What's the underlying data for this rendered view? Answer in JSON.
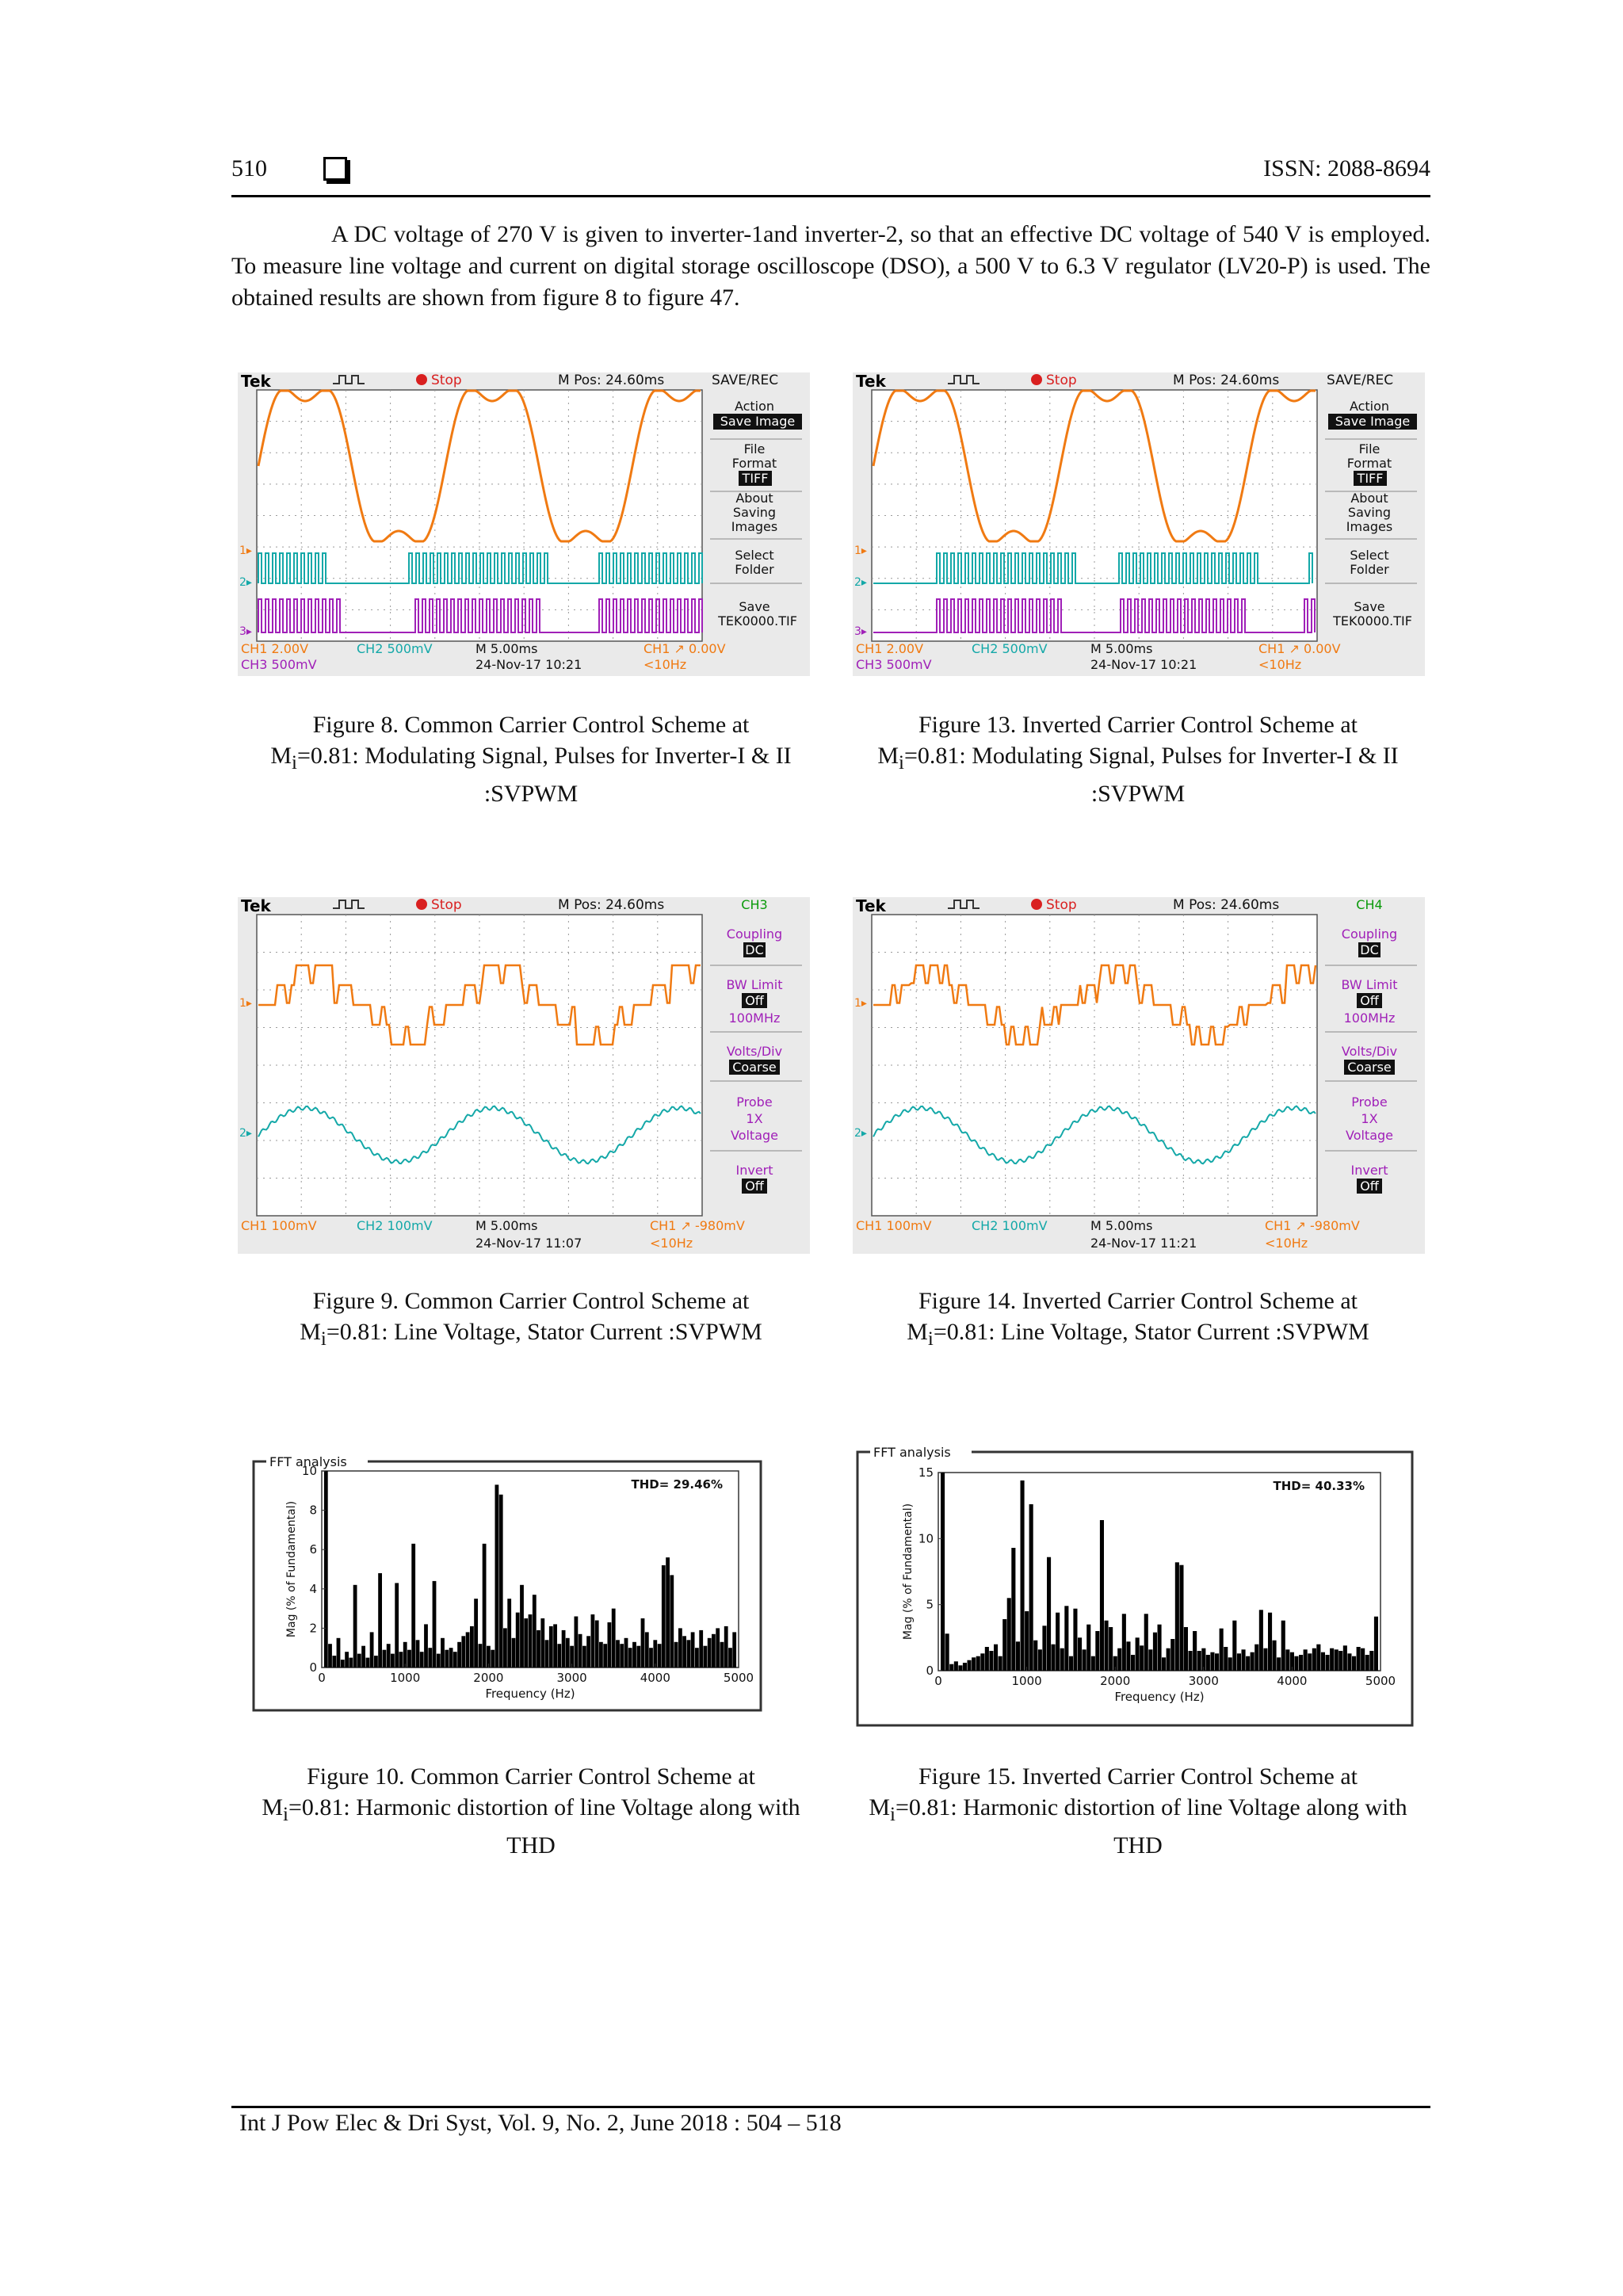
{
  "header": {
    "page_number": "510",
    "issn": "ISSN: 2088-8694"
  },
  "paragraph": "A DC voltage of 270 V is given to inverter-1and inverter-2, so that an effective DC voltage of 540 V is employed. To measure line voltage and current on digital storage oscilloscope (DSO), a 500 V to 6.3 V regulator (LV20-P) is used. The obtained results are shown from figure 8 to figure 47.",
  "figures": {
    "fig8": {
      "caption_a": "Figure 8. Common Carrier Control Scheme at",
      "caption_b": "M",
      "caption_sub": "i",
      "caption_c": "=0.81: Modulating Signal, Pulses for Inverter-I & II :SVPWM"
    },
    "fig13": {
      "caption_a": "Figure 13. Inverted Carrier Control Scheme at",
      "caption_b": "M",
      "caption_sub": "i",
      "caption_c": "=0.81: Modulating Signal, Pulses for Inverter-I & II :SVPWM"
    },
    "fig9": {
      "caption_a": "Figure 9. Common Carrier Control Scheme at",
      "caption_b": "M",
      "caption_sub": "i",
      "caption_c": "=0.81: Line Voltage, Stator Current :SVPWM"
    },
    "fig14": {
      "caption_a": "Figure 14. Inverted Carrier Control Scheme at",
      "caption_b": "M",
      "caption_sub": "i",
      "caption_c": "=0.81: Line Voltage, Stator Current :SVPWM"
    },
    "fig10": {
      "caption_a": "Figure 10. Common Carrier Control Scheme at",
      "caption_b": "M",
      "caption_sub": "i",
      "caption_c": "=0.81: Harmonic distortion of line Voltage along with THD"
    },
    "fig15": {
      "caption_a": "Figure 15. Inverted Carrier Control Scheme at",
      "caption_b": "M",
      "caption_sub": "i",
      "caption_c": "=0.81: Harmonic distortion of line Voltage along with THD"
    }
  },
  "scope_save": {
    "brand": "Tek",
    "status": "Stop",
    "mpos": "M Pos: 24.60ms",
    "menu_title": "SAVE/REC",
    "action": "Action",
    "save_image": "Save Image",
    "file_format_1": "File",
    "file_format_2": "Format",
    "tiff": "TIFF",
    "about_1": "About",
    "about_2": "Saving",
    "about_3": "Images",
    "select_1": "Select",
    "select_2": "Folder",
    "save_1": "Save",
    "save_2": "TEK0000.TIF",
    "ch1": "CH1  2.00V",
    "ch2": "CH2  500mV",
    "ch3": "CH3  500mV",
    "timebase": "M 5.00ms",
    "date": "24-Nov-17 10:21",
    "trig": "CH1 ↗ 0.00V",
    "freq": "<10Hz"
  },
  "scope_volt_a": {
    "brand": "Tek",
    "status": "Stop",
    "mpos": "M Pos: 24.60ms",
    "menu_title": "CH3",
    "coupling": "Coupling",
    "dc": "DC",
    "bw_limit": "BW Limit",
    "off1": "Off",
    "mhz": "100MHz",
    "volts_div": "Volts/Div",
    "coarse": "Coarse",
    "probe": "Probe",
    "x1": "1X",
    "voltage": "Voltage",
    "invert": "Invert",
    "off2": "Off",
    "ch1": "CH1  100mV",
    "ch2": "CH2  100mV",
    "timebase": "M 5.00ms",
    "date": "24-Nov-17 11:07",
    "trig": "CH1 ↗ -980mV",
    "freq": "<10Hz"
  },
  "scope_volt_b": {
    "brand": "Tek",
    "status": "Stop",
    "mpos": "M Pos: 24.60ms",
    "menu_title": "CH4",
    "coupling": "Coupling",
    "dc": "DC",
    "bw_limit": "BW Limit",
    "off1": "Off",
    "mhz": "100MHz",
    "volts_div": "Volts/Div",
    "coarse": "Coarse",
    "probe": "Probe",
    "x1": "1X",
    "voltage": "Voltage",
    "invert": "Invert",
    "off2": "Off",
    "ch1": "CH1  100mV",
    "ch2": "CH2  100mV",
    "timebase": "M 5.00ms",
    "date": "24-Nov-17 11:21",
    "trig": "CH1 ↗ -980mV",
    "freq": "<10Hz"
  },
  "chart_data": [
    {
      "type": "bar",
      "id": "fft10",
      "title": "FFT analysis",
      "annotation": "THD= 29.46%",
      "xlabel": "Frequency (Hz)",
      "ylabel": "Mag (% of Fundamental)",
      "xlim": [
        0,
        5000
      ],
      "ylim": [
        0,
        10
      ],
      "xticks": [
        "0",
        "1000",
        "2000",
        "3000",
        "4000",
        "5000"
      ],
      "yticks": [
        "0",
        "2",
        "4",
        "6",
        "8",
        "10"
      ],
      "x": [
        50,
        100,
        150,
        200,
        250,
        300,
        350,
        400,
        450,
        500,
        550,
        600,
        650,
        700,
        750,
        800,
        850,
        900,
        950,
        1000,
        1050,
        1100,
        1150,
        1200,
        1250,
        1300,
        1350,
        1400,
        1450,
        1500,
        1550,
        1600,
        1650,
        1700,
        1750,
        1800,
        1850,
        1900,
        1950,
        2000,
        2050,
        2100,
        2150,
        2200,
        2250,
        2300,
        2350,
        2400,
        2450,
        2500,
        2550,
        2600,
        2650,
        2700,
        2750,
        2800,
        2850,
        2900,
        2950,
        3000,
        3050,
        3100,
        3150,
        3200,
        3250,
        3300,
        3350,
        3400,
        3450,
        3500,
        3550,
        3600,
        3650,
        3700,
        3750,
        3800,
        3850,
        3900,
        3950,
        4000,
        4050,
        4100,
        4150,
        4200,
        4250,
        4300,
        4350,
        4400,
        4450,
        4500,
        4550,
        4600,
        4650,
        4700,
        4750,
        4800,
        4850,
        4900,
        4950
      ],
      "values": [
        10,
        1.2,
        0.6,
        1.5,
        0.4,
        0.8,
        0.5,
        4.2,
        0.7,
        1.1,
        0.5,
        1.8,
        0.6,
        4.8,
        0.9,
        1.2,
        0.7,
        4.3,
        0.8,
        1.3,
        0.9,
        6.3,
        1.4,
        0.8,
        2.2,
        1.0,
        4.4,
        0.7,
        1.5,
        0.9,
        1.0,
        0.8,
        1.3,
        1.6,
        1.8,
        2.1,
        3.5,
        1.2,
        6.3,
        1.1,
        0.9,
        9.3,
        8.8,
        2.0,
        3.5,
        1.5,
        2.8,
        4.2,
        2.5,
        2.7,
        3.7,
        1.9,
        2.5,
        1.4,
        2.1,
        2.2,
        1.2,
        1.9,
        1.5,
        1.1,
        2.6,
        1.7,
        1.1,
        1.6,
        2.7,
        2.4,
        1.3,
        1.2,
        2.3,
        3.0,
        1.4,
        1.2,
        1.5,
        1.0,
        1.3,
        1.1,
        2.5,
        1.8,
        1.0,
        1.4,
        1.2,
        5.2,
        5.6,
        4.7,
        1.3,
        2.0,
        1.6,
        1.4,
        1.8,
        1.0,
        1.9,
        1.1,
        1.5,
        1.7,
        2.0,
        1.3,
        2.1,
        1.0,
        1.8
      ]
    },
    {
      "type": "bar",
      "id": "fft15",
      "title": "FFT analysis",
      "annotation": "THD= 40.33%",
      "xlabel": "Frequency (Hz)",
      "ylabel": "Mag (% of Fundamental)",
      "xlim": [
        0,
        5000
      ],
      "ylim": [
        0,
        15
      ],
      "xticks": [
        "0",
        "1000",
        "2000",
        "3000",
        "4000",
        "5000"
      ],
      "yticks": [
        "0",
        "5",
        "10",
        "15"
      ],
      "x": [
        50,
        100,
        150,
        200,
        250,
        300,
        350,
        400,
        450,
        500,
        550,
        600,
        650,
        700,
        750,
        800,
        850,
        900,
        950,
        1000,
        1050,
        1100,
        1150,
        1200,
        1250,
        1300,
        1350,
        1400,
        1450,
        1500,
        1550,
        1600,
        1650,
        1700,
        1750,
        1800,
        1850,
        1900,
        1950,
        2000,
        2050,
        2100,
        2150,
        2200,
        2250,
        2300,
        2350,
        2400,
        2450,
        2500,
        2550,
        2600,
        2650,
        2700,
        2750,
        2800,
        2850,
        2900,
        2950,
        3000,
        3050,
        3100,
        3150,
        3200,
        3250,
        3300,
        3350,
        3400,
        3450,
        3500,
        3550,
        3600,
        3650,
        3700,
        3750,
        3800,
        3850,
        3900,
        3950,
        4000,
        4050,
        4100,
        4150,
        4200,
        4250,
        4300,
        4350,
        4400,
        4450,
        4500,
        4550,
        4600,
        4650,
        4700,
        4750,
        4800,
        4850,
        4900,
        4950
      ],
      "values": [
        15,
        2.8,
        0.5,
        0.7,
        0.4,
        0.6,
        0.8,
        1.0,
        1.1,
        1.3,
        1.8,
        1.5,
        2.0,
        1.1,
        3.9,
        5.5,
        9.3,
        2.2,
        14.4,
        4.5,
        12.6,
        2.3,
        1.6,
        3.4,
        8.6,
        2.0,
        4.4,
        1.7,
        4.9,
        1.1,
        4.7,
        2.5,
        1.6,
        3.5,
        1.1,
        3.0,
        11.4,
        3.8,
        3.3,
        1.1,
        1.7,
        4.3,
        2.2,
        1.2,
        2.5,
        1.9,
        4.3,
        1.6,
        2.9,
        3.5,
        1.0,
        1.7,
        2.4,
        8.2,
        8.0,
        3.3,
        1.5,
        3.0,
        1.5,
        1.7,
        1.2,
        1.4,
        1.3,
        3.2,
        1.8,
        1.0,
        3.8,
        1.3,
        1.6,
        1.1,
        1.4,
        2.0,
        4.6,
        1.7,
        4.4,
        2.3,
        1.0,
        3.8,
        1.6,
        1.4,
        1.1,
        1.2,
        1.6,
        1.3,
        1.7,
        2.0,
        1.4,
        1.2,
        1.7,
        1.6,
        1.5,
        1.9,
        1.3,
        1.1,
        1.8,
        1.7,
        1.2,
        1.5,
        4.1
      ]
    }
  ],
  "footer": "Int J Pow Elec & Dri Syst, Vol. 9, No. 2, June 2018 :  504 – 518"
}
